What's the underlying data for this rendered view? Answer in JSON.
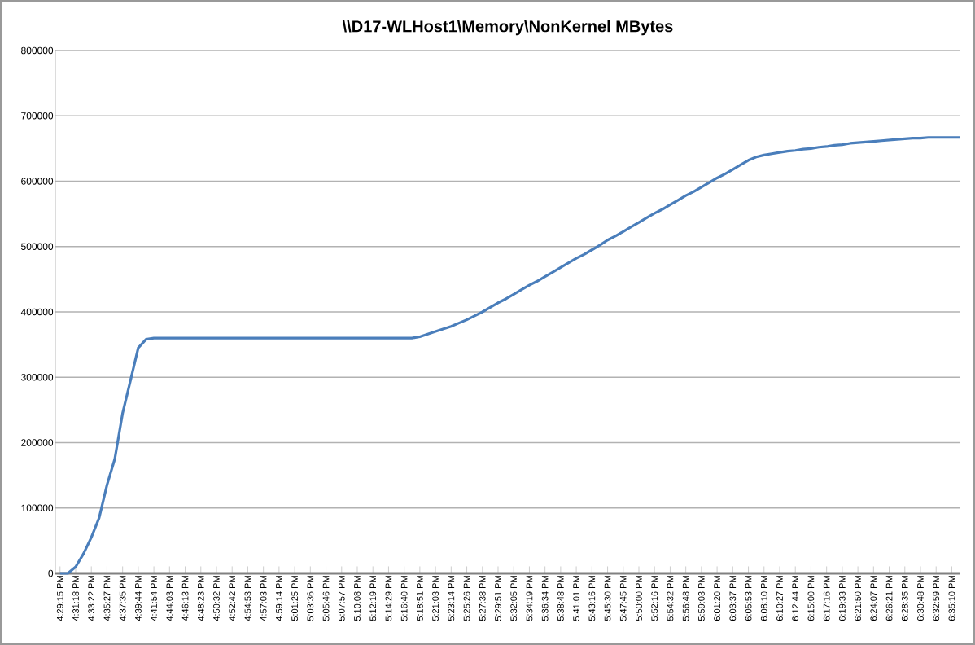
{
  "chart_data": {
    "type": "line",
    "title": "\\\\D17-WLHost1\\Memory\\NonKernel MBytes",
    "categories": [
      "4:29:15 PM",
      null,
      "4:31:18 PM",
      null,
      "4:33:22 PM",
      null,
      "4:35:27 PM",
      null,
      "4:37:35 PM",
      null,
      "4:39:44 PM",
      null,
      "4:41:54 PM",
      null,
      "4:44:03 PM",
      null,
      "4:46:13 PM",
      null,
      "4:48:23 PM",
      null,
      "4:50:32 PM",
      null,
      "4:52:42 PM",
      null,
      "4:54:53 PM",
      null,
      "4:57:03 PM",
      null,
      "4:59:14 PM",
      null,
      "5:01:25 PM",
      null,
      "5:03:36 PM",
      null,
      "5:05:46 PM",
      null,
      "5:07:57 PM",
      null,
      "5:10:08 PM",
      null,
      "5:12:19 PM",
      null,
      "5:14:29 PM",
      null,
      "5:16:40 PM",
      null,
      "5:18:51 PM",
      null,
      "5:21:03 PM",
      null,
      "5:23:14 PM",
      null,
      "5:25:26 PM",
      null,
      "5:27:38 PM",
      null,
      "5:29:51 PM",
      null,
      "5:32:05 PM",
      null,
      "5:34:19 PM",
      null,
      "5:36:34 PM",
      null,
      "5:38:48 PM",
      null,
      "5:41:01 PM",
      null,
      "5:43:16 PM",
      null,
      "5:45:30 PM",
      null,
      "5:47:45 PM",
      null,
      "5:50:00 PM",
      null,
      "5:52:16 PM",
      null,
      "5:54:32 PM",
      null,
      "5:56:48 PM",
      null,
      "5:59:03 PM",
      null,
      "6:01:20 PM",
      null,
      "6:03:37 PM",
      null,
      "6:05:53 PM",
      null,
      "6:08:10 PM",
      null,
      "6:10:27 PM",
      null,
      "6:12:44 PM",
      null,
      "6:15:00 PM",
      null,
      "6:17:16 PM",
      null,
      "6:19:33 PM",
      null,
      "6:21:50 PM",
      null,
      "6:24:07 PM",
      null,
      "6:26:21 PM",
      null,
      "6:28:35 PM",
      null,
      "6:30:48 PM",
      null,
      "6:32:59 PM",
      null,
      "6:35:10 PM",
      null
    ],
    "values": [
      0,
      0,
      10000,
      30000,
      55000,
      85000,
      135000,
      175000,
      245000,
      295000,
      345000,
      358000,
      360000,
      360000,
      360000,
      360000,
      360000,
      360000,
      360000,
      360000,
      360000,
      360000,
      360000,
      360000,
      360000,
      360000,
      360000,
      360000,
      360000,
      360000,
      360000,
      360000,
      360000,
      360000,
      360000,
      360000,
      360000,
      360000,
      360000,
      360000,
      360000,
      360000,
      360000,
      360000,
      360000,
      360000,
      362000,
      366000,
      370000,
      374000,
      378000,
      383000,
      388000,
      394000,
      400000,
      407000,
      414000,
      420000,
      427000,
      434000,
      441000,
      447000,
      454000,
      461000,
      468000,
      475000,
      482000,
      488000,
      495000,
      502000,
      510000,
      516000,
      523000,
      530000,
      537000,
      544000,
      551000,
      557000,
      564000,
      571000,
      578000,
      584000,
      591000,
      598000,
      605000,
      611000,
      618000,
      625000,
      632000,
      637000,
      640000,
      642000,
      644000,
      646000,
      647000,
      649000,
      650000,
      652000,
      653000,
      655000,
      656000,
      658000,
      659000,
      660000,
      661000,
      662000,
      663000,
      664000,
      665000,
      666000,
      666000,
      667000,
      667000,
      667000,
      667000,
      667000
    ],
    "color": "#4a7ebb",
    "ylim": [
      0,
      800000
    ],
    "yticks": [
      0,
      100000,
      200000,
      300000,
      400000,
      500000,
      600000,
      700000,
      800000
    ],
    "grid": "y"
  }
}
